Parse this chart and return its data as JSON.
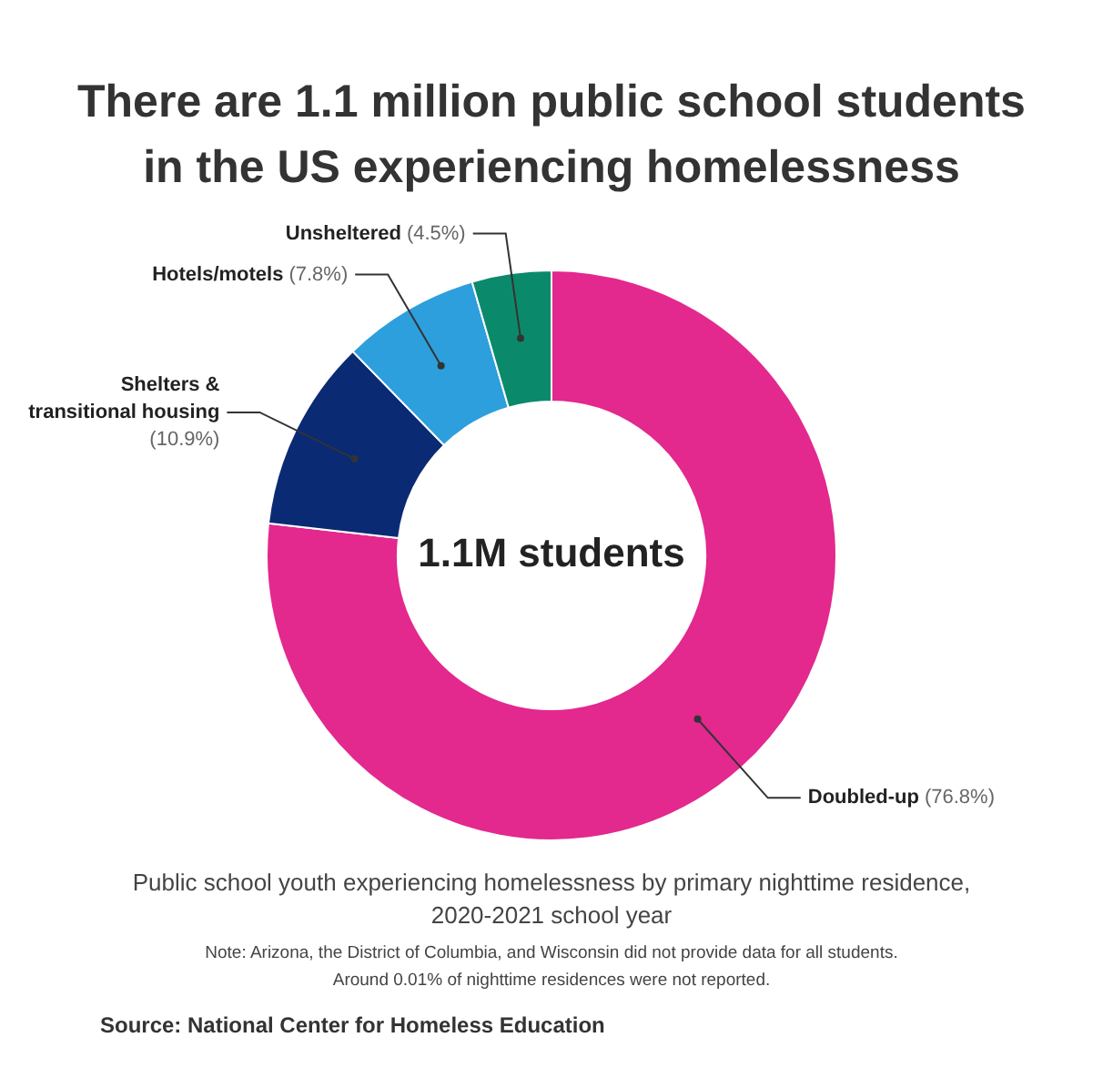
{
  "chart_data": {
    "type": "donut",
    "title": "There are 1.1 million public school students in the US experiencing homelessness",
    "subtitle": "Public school youth experiencing homelessness by primary  nighttime residence, 2020-2021 school year",
    "categories": [
      "Doubled-up",
      "Shelters & transitional housing",
      "Hotels/motels",
      "Unsheltered"
    ],
    "values": [
      76.8,
      10.9,
      7.8,
      4.5
    ],
    "colors": [
      "#e3288e",
      "#0b2a74",
      "#2d9fdc",
      "#0b8a6b"
    ],
    "value_labels": [
      "(76.8%)",
      "(10.9%)",
      "(7.8%)",
      "(4.5%)"
    ],
    "legend": false,
    "annotations": [
      "1.1M students",
      "Note: Arizona, the District of Columbia, and Wisconsin did not provide data for all students.",
      "Around 0.01% of nighttime residences were not reported.",
      "Source: National Center for Homeless Education"
    ]
  }
}
